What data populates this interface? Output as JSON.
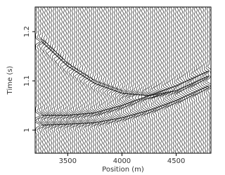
{
  "chart_data": {
    "type": "wiggle",
    "xlabel": "Position (m)",
    "ylabel": "Time (s)",
    "xlim": [
      3200,
      4820
    ],
    "ylim": [
      0.953,
      1.25
    ],
    "xticks": [
      3500,
      4000,
      4500
    ],
    "yticks": [
      1,
      1.1,
      1.2
    ],
    "color": "#000000",
    "series": [
      {
        "x": [
          3260,
          3500,
          3750,
          4000,
          4250,
          4500,
          4800
        ],
        "values": [
          1.18,
          1.13,
          1.095,
          1.075,
          1.07,
          1.08,
          1.11
        ]
      },
      {
        "x": [
          3260,
          3500,
          3750,
          4000,
          4250,
          4500,
          4800
        ],
        "values": [
          1.03,
          1.03,
          1.035,
          1.05,
          1.07,
          1.09,
          1.12
        ]
      },
      {
        "x": [
          3260,
          3500,
          3750,
          4000,
          4250,
          4500,
          4800
        ],
        "values": [
          1.01,
          1.012,
          1.015,
          1.025,
          1.04,
          1.06,
          1.09
        ]
      }
    ]
  }
}
